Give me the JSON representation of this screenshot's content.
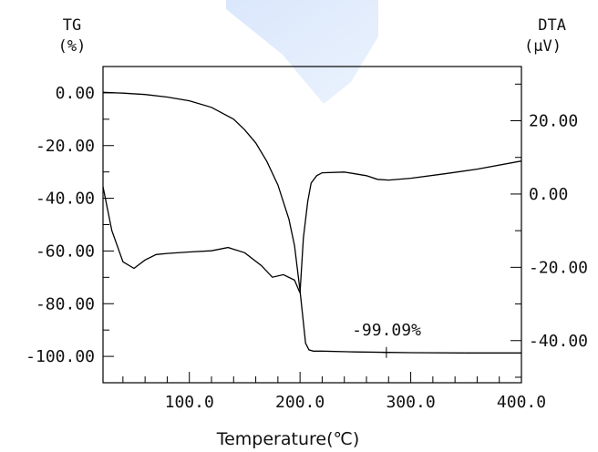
{
  "chart_data": {
    "type": "line",
    "xlabel": "Temperature(℃)",
    "xlim": [
      22,
      400
    ],
    "x_ticks": [
      "100.0",
      "200.0",
      "300.0",
      "400.0"
    ],
    "y_left": {
      "title": "TG",
      "unit": "(%)",
      "ylim": [
        -110,
        10
      ],
      "ticks": [
        "0.00",
        "-20.00",
        "-40.00",
        "-60.00",
        "-80.00",
        "-100.00"
      ]
    },
    "y_right": {
      "title": "DTA",
      "unit": "(μV)",
      "ylim": [
        -51.5,
        34.8
      ],
      "ticks": [
        "20.00",
        "0.00",
        "-20.00",
        "-40.00"
      ]
    },
    "series": [
      {
        "axis": "left",
        "color": "#000000",
        "x": [
          22,
          40,
          60,
          80,
          100,
          120,
          140,
          150,
          160,
          170,
          180,
          190,
          195,
          200,
          205,
          208,
          212,
          220,
          250,
          280,
          300,
          350,
          400
        ],
        "y": [
          0.2,
          -0.1,
          -0.6,
          -1.6,
          -3.0,
          -5.5,
          -10.0,
          -14.0,
          -19.0,
          -26.0,
          -35.0,
          -48.0,
          -58.0,
          -75.0,
          -95.0,
          -97.5,
          -98.0,
          -98.0,
          -98.3,
          -98.5,
          -98.6,
          -98.7,
          -98.7
        ]
      },
      {
        "axis": "right",
        "color": "#000000",
        "x": [
          22,
          30,
          40,
          50,
          60,
          70,
          80,
          100,
          120,
          135,
          150,
          165,
          175,
          185,
          195,
          200,
          203,
          207,
          210,
          215,
          220,
          240,
          260,
          270,
          280,
          300,
          330,
          360,
          400
        ],
        "y": [
          2.0,
          -10.0,
          -18.5,
          -20.3,
          -18.0,
          -16.5,
          -16.2,
          -15.8,
          -15.5,
          -14.6,
          -16.0,
          -19.5,
          -22.7,
          -22.0,
          -23.5,
          -27.0,
          -12.0,
          -2.0,
          3.0,
          5.0,
          5.8,
          6.0,
          5.0,
          4.0,
          3.8,
          4.3,
          5.5,
          6.8,
          9.0
        ]
      }
    ],
    "annotation": "-99.09%",
    "annotation_point": {
      "x": 278,
      "y": -98.5
    }
  }
}
